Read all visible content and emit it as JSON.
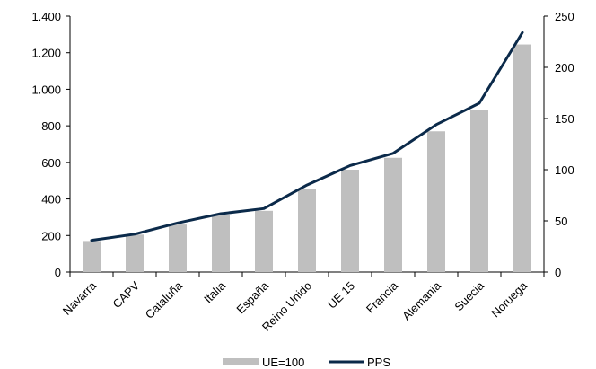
{
  "chart_data": {
    "type": "bar",
    "categories": [
      "Navarra",
      "CAPV",
      "Cataluña",
      "Italia",
      "España",
      "Reino Unido",
      "UE 15",
      "Francia",
      "Alemania",
      "Suecia",
      "Noruega"
    ],
    "series": [
      {
        "name": "UE=100",
        "type": "bar",
        "axis": "left",
        "color": "#bfbfbf",
        "values": [
          170,
          205,
          260,
          310,
          335,
          455,
          560,
          625,
          770,
          885,
          1245
        ]
      },
      {
        "name": "PPS",
        "type": "line",
        "axis": "right",
        "color": "#0b2a4a",
        "values": [
          31,
          37,
          48,
          57,
          62,
          85,
          104,
          116,
          144,
          165,
          234
        ]
      }
    ],
    "left_axis": {
      "ylim": [
        0,
        1400
      ],
      "ticks": [
        0,
        200,
        400,
        600,
        800,
        1000,
        1200,
        1400
      ],
      "tick_labels": [
        "0",
        "200",
        "400",
        "600",
        "800",
        "1.000",
        "1.200",
        "1.400"
      ]
    },
    "right_axis": {
      "ylim": [
        0,
        250
      ],
      "ticks": [
        0,
        50,
        100,
        150,
        200,
        250
      ],
      "tick_labels": [
        "0",
        "50",
        "100",
        "150",
        "200",
        "250"
      ]
    },
    "grid": false,
    "legend": {
      "placement": "bottom-center",
      "entries": [
        "UE=100",
        "PPS"
      ]
    }
  }
}
